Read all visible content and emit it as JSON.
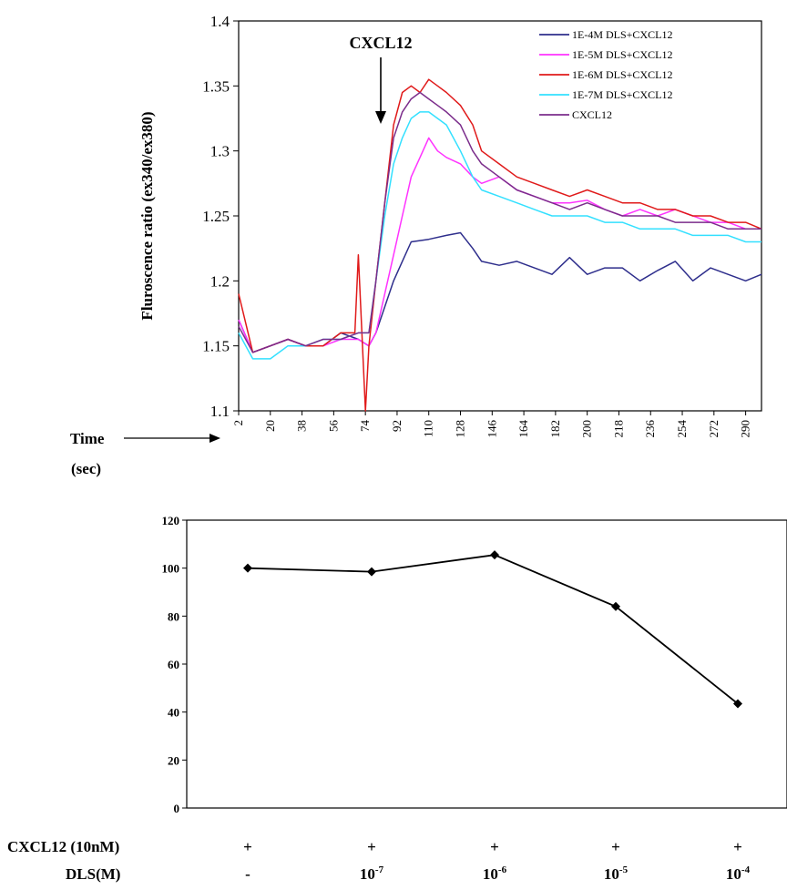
{
  "chart_data": [
    {
      "type": "line",
      "title": "",
      "ylabel": "Fluroscence ratio  (ex340/ex380)",
      "xlabel": "Time",
      "xlabel_unit": "(sec)",
      "annotation": "CXCL12",
      "annotation_x": 74,
      "xlim": [
        2,
        299
      ],
      "ylim": [
        1.1,
        1.4
      ],
      "yticks": [
        1.1,
        1.15,
        1.2,
        1.25,
        1.3,
        1.35,
        1.4
      ],
      "xticks": [
        2,
        20,
        38,
        56,
        74,
        92,
        110,
        128,
        146,
        164,
        182,
        200,
        218,
        236,
        254,
        272,
        290
      ],
      "ytick_labels": [
        "1.1",
        "1.15",
        "1.2",
        "1.25",
        "1.3",
        "1.35",
        "1.4"
      ],
      "xtick_labels": [
        "2",
        "20",
        "38",
        "56",
        "74",
        "92",
        "110",
        "128",
        "146",
        "164",
        "182",
        "200",
        "218",
        "236",
        "254",
        "272",
        "290"
      ],
      "legend_position": "top-right",
      "grid": false,
      "series": [
        {
          "name": "1E-4M DLS+CXCL12",
          "color": "#2e2e8c",
          "x": [
            2,
            10,
            20,
            30,
            40,
            50,
            60,
            70,
            76,
            80,
            85,
            90,
            95,
            100,
            110,
            120,
            128,
            135,
            140,
            150,
            160,
            170,
            180,
            190,
            200,
            210,
            220,
            230,
            240,
            250,
            260,
            270,
            280,
            290,
            299
          ],
          "y": [
            1.17,
            1.145,
            1.15,
            1.155,
            1.15,
            1.15,
            1.16,
            1.155,
            1.15,
            1.16,
            1.18,
            1.2,
            1.215,
            1.23,
            1.232,
            1.235,
            1.237,
            1.225,
            1.215,
            1.212,
            1.215,
            1.21,
            1.205,
            1.218,
            1.205,
            1.21,
            1.21,
            1.2,
            1.208,
            1.215,
            1.2,
            1.21,
            1.205,
            1.2,
            1.205
          ]
        },
        {
          "name": "1E-5M DLS+CXCL12",
          "color": "#ff33ff",
          "x": [
            2,
            10,
            20,
            30,
            40,
            50,
            60,
            70,
            76,
            80,
            85,
            90,
            95,
            100,
            105,
            110,
            115,
            120,
            128,
            135,
            140,
            150,
            160,
            170,
            180,
            190,
            200,
            210,
            220,
            230,
            240,
            250,
            260,
            270,
            280,
            290,
            299
          ],
          "y": [
            1.17,
            1.145,
            1.15,
            1.155,
            1.15,
            1.15,
            1.155,
            1.155,
            1.15,
            1.16,
            1.19,
            1.22,
            1.25,
            1.28,
            1.295,
            1.31,
            1.3,
            1.295,
            1.29,
            1.28,
            1.275,
            1.28,
            1.27,
            1.265,
            1.26,
            1.26,
            1.262,
            1.255,
            1.25,
            1.255,
            1.25,
            1.255,
            1.25,
            1.245,
            1.245,
            1.24,
            1.24
          ]
        },
        {
          "name": "1E-6M DLS+CXCL12",
          "color": "#e01a1a",
          "x": [
            2,
            10,
            20,
            30,
            40,
            50,
            60,
            68,
            70,
            72,
            74,
            76,
            80,
            85,
            90,
            95,
            100,
            105,
            110,
            115,
            120,
            128,
            135,
            140,
            150,
            160,
            170,
            180,
            190,
            200,
            210,
            220,
            230,
            240,
            250,
            260,
            270,
            280,
            290,
            299
          ],
          "y": [
            1.19,
            1.145,
            1.15,
            1.155,
            1.15,
            1.15,
            1.16,
            1.16,
            1.22,
            1.16,
            1.1,
            1.15,
            1.2,
            1.26,
            1.32,
            1.345,
            1.35,
            1.345,
            1.355,
            1.35,
            1.345,
            1.335,
            1.32,
            1.3,
            1.29,
            1.28,
            1.275,
            1.27,
            1.265,
            1.27,
            1.265,
            1.26,
            1.26,
            1.255,
            1.255,
            1.25,
            1.25,
            1.245,
            1.245,
            1.24
          ]
        },
        {
          "name": "1E-7M DLS+CXCL12",
          "color": "#33e0ff",
          "x": [
            2,
            10,
            20,
            30,
            40,
            50,
            60,
            70,
            76,
            80,
            85,
            90,
            95,
            100,
            105,
            110,
            115,
            120,
            128,
            135,
            140,
            150,
            160,
            170,
            180,
            190,
            200,
            210,
            220,
            230,
            240,
            250,
            260,
            270,
            280,
            290,
            299
          ],
          "y": [
            1.16,
            1.14,
            1.14,
            1.15,
            1.15,
            1.155,
            1.155,
            1.16,
            1.16,
            1.2,
            1.25,
            1.29,
            1.31,
            1.325,
            1.33,
            1.33,
            1.325,
            1.32,
            1.3,
            1.28,
            1.27,
            1.265,
            1.26,
            1.255,
            1.25,
            1.25,
            1.25,
            1.245,
            1.245,
            1.24,
            1.24,
            1.24,
            1.235,
            1.235,
            1.235,
            1.23,
            1.23
          ]
        },
        {
          "name": "CXCL12",
          "color": "#7b2d8b",
          "x": [
            2,
            10,
            20,
            30,
            40,
            50,
            60,
            70,
            76,
            80,
            85,
            90,
            95,
            100,
            105,
            110,
            115,
            120,
            128,
            135,
            140,
            150,
            160,
            170,
            180,
            190,
            200,
            210,
            220,
            230,
            240,
            250,
            260,
            270,
            280,
            290,
            299
          ],
          "y": [
            1.165,
            1.145,
            1.15,
            1.155,
            1.15,
            1.155,
            1.155,
            1.16,
            1.16,
            1.2,
            1.26,
            1.31,
            1.33,
            1.34,
            1.345,
            1.34,
            1.335,
            1.33,
            1.32,
            1.3,
            1.29,
            1.28,
            1.27,
            1.265,
            1.26,
            1.255,
            1.26,
            1.255,
            1.25,
            1.25,
            1.25,
            1.245,
            1.245,
            1.245,
            1.24,
            1.24,
            1.24
          ]
        }
      ]
    },
    {
      "type": "line",
      "title": "",
      "ylim": [
        0,
        120
      ],
      "yticks": [
        0,
        20,
        40,
        60,
        80,
        100,
        120
      ],
      "ytick_labels": [
        "0",
        "20",
        "40",
        "60",
        "80",
        "100",
        "120"
      ],
      "grid": false,
      "series": [
        {
          "values": [
            100,
            98.5,
            105.5,
            84,
            43.5
          ],
          "color": "#000000"
        }
      ],
      "rows": [
        {
          "label": "CXCL12 (10nM)",
          "cells": [
            {
              "base": "+",
              "sup": ""
            },
            {
              "base": "+",
              "sup": ""
            },
            {
              "base": "+",
              "sup": ""
            },
            {
              "base": "+",
              "sup": ""
            },
            {
              "base": "+",
              "sup": ""
            }
          ]
        },
        {
          "label": "DLS(M)",
          "cells": [
            {
              "base": "-",
              "sup": ""
            },
            {
              "base": "10",
              "sup": "-7"
            },
            {
              "base": "10",
              "sup": "-6"
            },
            {
              "base": "10",
              "sup": "-5"
            },
            {
              "base": "10",
              "sup": "-4"
            }
          ]
        }
      ]
    }
  ]
}
